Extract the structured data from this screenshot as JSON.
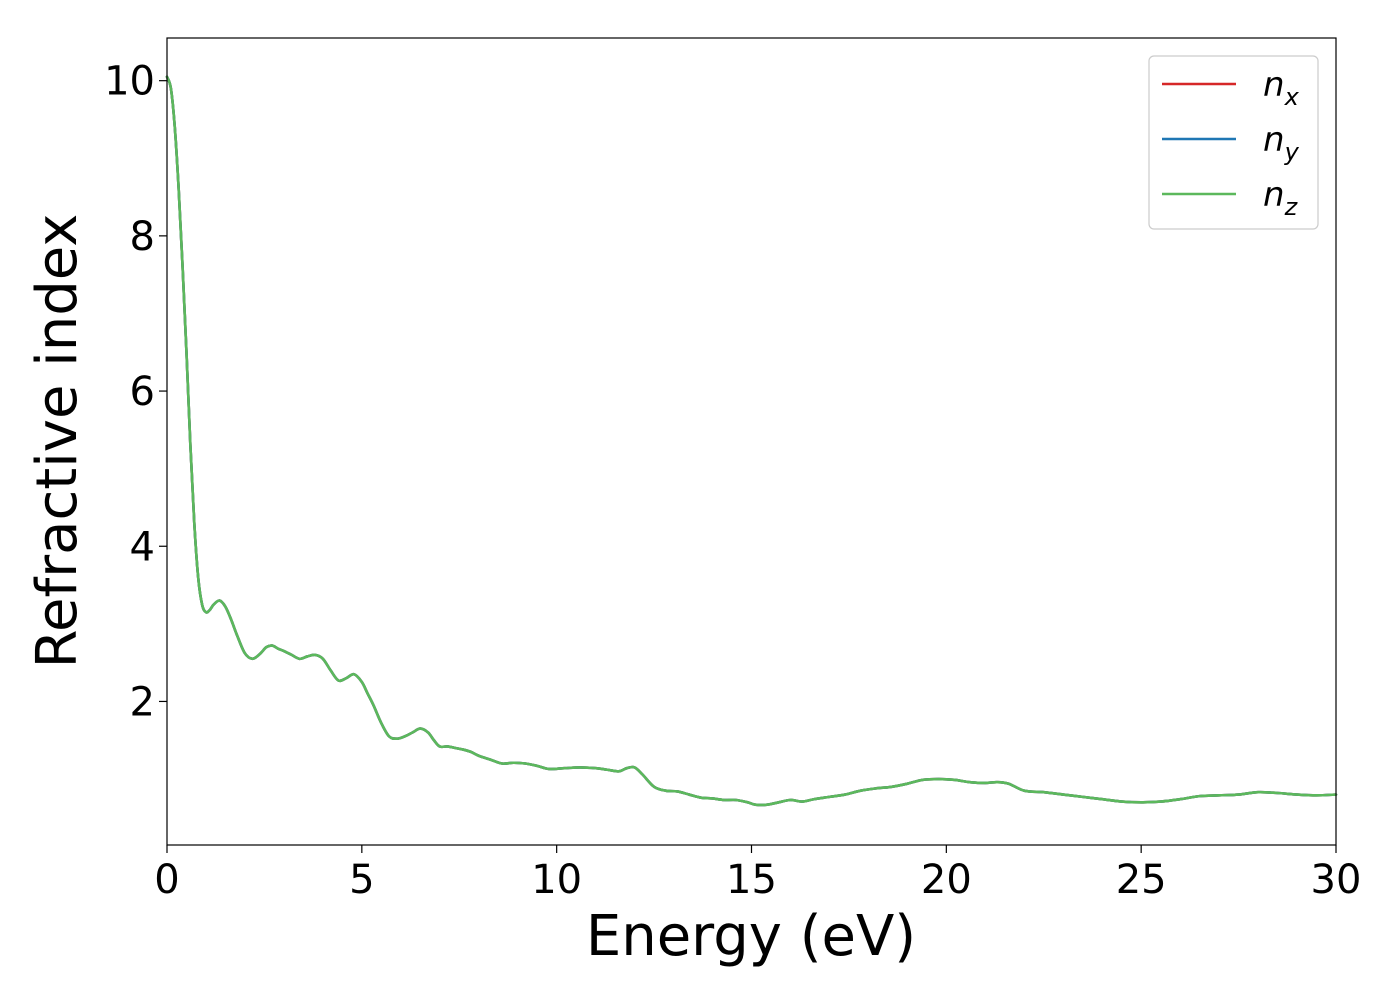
{
  "chart_data": {
    "type": "line",
    "xlabel": "Energy (eV)",
    "ylabel": "Refractive index",
    "xlim": [
      0,
      30
    ],
    "ylim": [
      0.15,
      10.55
    ],
    "xticks": [
      0,
      5,
      10,
      15,
      20,
      25,
      30
    ],
    "yticks": [
      2,
      4,
      6,
      8,
      10
    ],
    "grid": false,
    "legend_position": "top-right",
    "x": [
      0,
      0.1,
      0.2,
      0.3,
      0.4,
      0.5,
      0.6,
      0.7,
      0.8,
      0.9,
      1.0,
      1.1,
      1.2,
      1.35,
      1.5,
      1.65,
      1.8,
      2.0,
      2.2,
      2.4,
      2.55,
      2.7,
      2.85,
      3.0,
      3.2,
      3.4,
      3.6,
      3.8,
      4.0,
      4.2,
      4.4,
      4.6,
      4.8,
      5.0,
      5.15,
      5.3,
      5.5,
      5.7,
      5.9,
      6.1,
      6.3,
      6.5,
      6.7,
      6.85,
      7.0,
      7.2,
      7.4,
      7.6,
      7.8,
      8.0,
      8.3,
      8.6,
      8.9,
      9.2,
      9.5,
      9.8,
      10.2,
      10.6,
      11.0,
      11.3,
      11.6,
      11.8,
      12.0,
      12.2,
      12.5,
      12.8,
      13.1,
      13.4,
      13.7,
      14.0,
      14.3,
      14.6,
      14.9,
      15.1,
      15.4,
      15.7,
      16.0,
      16.3,
      16.6,
      17.0,
      17.4,
      17.8,
      18.2,
      18.6,
      19.0,
      19.4,
      19.8,
      20.2,
      20.6,
      21.0,
      21.3,
      21.6,
      22.0,
      22.5,
      23.0,
      23.5,
      24.0,
      24.5,
      25.0,
      25.5,
      26.0,
      26.5,
      27.0,
      27.5,
      28.0,
      28.5,
      29.0,
      29.5,
      30.0
    ],
    "series": [
      {
        "name": "n_x",
        "color": "#d62728",
        "values": [
          10.05,
          9.9,
          9.4,
          8.6,
          7.6,
          6.5,
          5.3,
          4.3,
          3.6,
          3.25,
          3.15,
          3.18,
          3.25,
          3.3,
          3.22,
          3.05,
          2.85,
          2.62,
          2.55,
          2.62,
          2.7,
          2.72,
          2.68,
          2.65,
          2.6,
          2.55,
          2.58,
          2.6,
          2.55,
          2.4,
          2.27,
          2.3,
          2.35,
          2.25,
          2.1,
          1.95,
          1.72,
          1.55,
          1.52,
          1.55,
          1.6,
          1.65,
          1.6,
          1.5,
          1.42,
          1.42,
          1.4,
          1.38,
          1.35,
          1.3,
          1.25,
          1.2,
          1.21,
          1.2,
          1.17,
          1.13,
          1.14,
          1.15,
          1.14,
          1.12,
          1.1,
          1.14,
          1.15,
          1.06,
          0.9,
          0.85,
          0.84,
          0.8,
          0.76,
          0.75,
          0.73,
          0.73,
          0.7,
          0.67,
          0.67,
          0.7,
          0.73,
          0.71,
          0.74,
          0.77,
          0.8,
          0.85,
          0.88,
          0.9,
          0.94,
          0.99,
          1.0,
          0.99,
          0.96,
          0.95,
          0.96,
          0.94,
          0.85,
          0.83,
          0.8,
          0.77,
          0.74,
          0.71,
          0.7,
          0.71,
          0.74,
          0.78,
          0.79,
          0.8,
          0.83,
          0.82,
          0.8,
          0.79,
          0.8
        ]
      },
      {
        "name": "n_y",
        "color": "#1f77b4",
        "values": [
          10.05,
          9.9,
          9.4,
          8.6,
          7.6,
          6.5,
          5.3,
          4.3,
          3.6,
          3.25,
          3.15,
          3.18,
          3.25,
          3.3,
          3.22,
          3.05,
          2.85,
          2.62,
          2.55,
          2.62,
          2.7,
          2.72,
          2.68,
          2.65,
          2.6,
          2.55,
          2.58,
          2.6,
          2.55,
          2.4,
          2.27,
          2.3,
          2.35,
          2.25,
          2.1,
          1.95,
          1.72,
          1.55,
          1.52,
          1.55,
          1.6,
          1.65,
          1.6,
          1.5,
          1.42,
          1.42,
          1.4,
          1.38,
          1.35,
          1.3,
          1.25,
          1.2,
          1.21,
          1.2,
          1.17,
          1.13,
          1.14,
          1.15,
          1.14,
          1.12,
          1.1,
          1.14,
          1.15,
          1.06,
          0.9,
          0.85,
          0.84,
          0.8,
          0.76,
          0.75,
          0.73,
          0.73,
          0.7,
          0.67,
          0.67,
          0.7,
          0.73,
          0.71,
          0.74,
          0.77,
          0.8,
          0.85,
          0.88,
          0.9,
          0.94,
          0.99,
          1.0,
          0.99,
          0.96,
          0.95,
          0.96,
          0.94,
          0.85,
          0.83,
          0.8,
          0.77,
          0.74,
          0.71,
          0.7,
          0.71,
          0.74,
          0.78,
          0.79,
          0.8,
          0.83,
          0.82,
          0.8,
          0.79,
          0.8
        ]
      },
      {
        "name": "n_z",
        "color": "#5cb85c",
        "values": [
          10.05,
          9.9,
          9.4,
          8.6,
          7.6,
          6.5,
          5.3,
          4.3,
          3.6,
          3.25,
          3.15,
          3.18,
          3.25,
          3.3,
          3.22,
          3.05,
          2.85,
          2.62,
          2.55,
          2.62,
          2.7,
          2.72,
          2.68,
          2.65,
          2.6,
          2.55,
          2.58,
          2.6,
          2.55,
          2.4,
          2.27,
          2.3,
          2.35,
          2.25,
          2.1,
          1.95,
          1.72,
          1.55,
          1.52,
          1.55,
          1.6,
          1.65,
          1.6,
          1.5,
          1.42,
          1.42,
          1.4,
          1.38,
          1.35,
          1.3,
          1.25,
          1.2,
          1.21,
          1.2,
          1.17,
          1.13,
          1.14,
          1.15,
          1.14,
          1.12,
          1.1,
          1.14,
          1.15,
          1.06,
          0.9,
          0.85,
          0.84,
          0.8,
          0.76,
          0.75,
          0.73,
          0.73,
          0.7,
          0.67,
          0.67,
          0.7,
          0.73,
          0.71,
          0.74,
          0.77,
          0.8,
          0.85,
          0.88,
          0.9,
          0.94,
          0.99,
          1.0,
          0.99,
          0.96,
          0.95,
          0.96,
          0.94,
          0.85,
          0.83,
          0.8,
          0.77,
          0.74,
          0.71,
          0.7,
          0.71,
          0.74,
          0.78,
          0.79,
          0.8,
          0.83,
          0.82,
          0.8,
          0.79,
          0.8
        ]
      }
    ],
    "legend": [
      {
        "symbol": "n",
        "subscript": "x",
        "color": "#d62728"
      },
      {
        "symbol": "n",
        "subscript": "y",
        "color": "#1f77b4"
      },
      {
        "symbol": "n",
        "subscript": "z",
        "color": "#5cb85c"
      }
    ]
  }
}
